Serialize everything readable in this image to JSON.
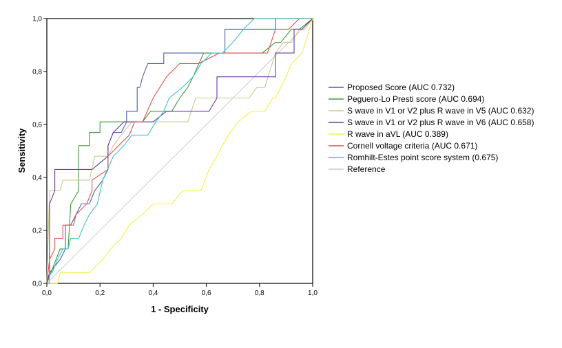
{
  "chart_data": {
    "type": "line",
    "xlabel": "1 - Specificity",
    "ylabel": "Sensitivity",
    "xlim": [
      0,
      1
    ],
    "ylim": [
      0,
      1
    ],
    "xticks": [
      "0,0",
      "0,2",
      "0,4",
      "0,6",
      "0,8",
      "1,0"
    ],
    "yticks": [
      "0,0",
      "0,2",
      "0,4",
      "0,6",
      "0,8",
      "1,0"
    ],
    "grid": false,
    "legend_position": "right",
    "series": [
      {
        "name": "Proposed Score (AUC 0.732)",
        "color": "#4a5fa8",
        "x": [
          0,
          0.01,
          0.05,
          0.07,
          0.07,
          0.09,
          0.11,
          0.11,
          0.13,
          0.16,
          0.16,
          0.18,
          0.18,
          0.21,
          0.23,
          0.23,
          0.25,
          0.28,
          0.3,
          0.3,
          0.34,
          0.34,
          0.35,
          0.36,
          0.36,
          0.38,
          0.44,
          0.44,
          0.59,
          0.67,
          0.67,
          0.86,
          0.86,
          0.9,
          0.93,
          1.0
        ],
        "y": [
          0,
          0.04,
          0.09,
          0.13,
          0.22,
          0.22,
          0.26,
          0.26,
          0.3,
          0.3,
          0.3,
          0.35,
          0.35,
          0.39,
          0.43,
          0.52,
          0.57,
          0.57,
          0.61,
          0.65,
          0.65,
          0.74,
          0.74,
          0.78,
          0.78,
          0.83,
          0.83,
          0.87,
          0.87,
          0.87,
          0.96,
          0.96,
          1.0,
          1.0,
          1.0,
          1.0
        ]
      },
      {
        "name": "Peguero-Lo Presti score (AUC 0.694)",
        "color": "#3a9a3a",
        "x": [
          0,
          0.05,
          0.08,
          0.09,
          0.09,
          0.12,
          0.12,
          0.14,
          0.16,
          0.16,
          0.2,
          0.2,
          0.33,
          0.36,
          0.39,
          0.41,
          0.44,
          0.47,
          0.5,
          0.53,
          0.55,
          0.59,
          0.62,
          0.74,
          0.81,
          0.86,
          0.88,
          0.92,
          0.95,
          1.0
        ],
        "y": [
          0,
          0.13,
          0.13,
          0.3,
          0.3,
          0.35,
          0.52,
          0.52,
          0.52,
          0.57,
          0.57,
          0.61,
          0.61,
          0.61,
          0.65,
          0.65,
          0.65,
          0.65,
          0.7,
          0.74,
          0.78,
          0.87,
          0.87,
          0.87,
          0.87,
          0.91,
          0.91,
          0.96,
          0.96,
          1.0
        ]
      },
      {
        "name": "S wave in V1 or V2 plus R wave in V5 (AUC 0.632)",
        "color": "#c8c890",
        "x": [
          0,
          0.01,
          0.05,
          0.05,
          0.06,
          0.08,
          0.12,
          0.16,
          0.18,
          0.2,
          0.23,
          0.25,
          0.28,
          0.32,
          0.36,
          0.41,
          0.45,
          0.53,
          0.56,
          0.65,
          0.7,
          0.76,
          0.79,
          0.82,
          0.86,
          0.89,
          0.92,
          0.95,
          0.97,
          1.0
        ],
        "y": [
          0,
          0.35,
          0.35,
          0.35,
          0.39,
          0.39,
          0.39,
          0.39,
          0.48,
          0.48,
          0.48,
          0.52,
          0.56,
          0.61,
          0.61,
          0.61,
          0.61,
          0.61,
          0.7,
          0.7,
          0.7,
          0.7,
          0.74,
          0.74,
          0.87,
          0.91,
          0.91,
          0.96,
          0.96,
          1.0
        ]
      },
      {
        "name": "S wave in V1 or V2 plus R wave in V6 (AUC 0.658)",
        "color": "#6a3a9a",
        "x": [
          0,
          0.01,
          0.01,
          0.03,
          0.03,
          0.15,
          0.17,
          0.23,
          0.23,
          0.25,
          0.29,
          0.31,
          0.33,
          0.35,
          0.36,
          0.4,
          0.45,
          0.57,
          0.61,
          0.64,
          0.64,
          0.77,
          0.79,
          0.83,
          0.86,
          0.86,
          0.87,
          0.91,
          0.93,
          0.93,
          0.96,
          1.0
        ],
        "y": [
          0,
          0.04,
          0.3,
          0.35,
          0.43,
          0.43,
          0.43,
          0.48,
          0.52,
          0.57,
          0.61,
          0.61,
          0.61,
          0.61,
          0.61,
          0.61,
          0.65,
          0.65,
          0.65,
          0.7,
          0.78,
          0.78,
          0.78,
          0.78,
          0.78,
          0.87,
          0.87,
          0.87,
          0.87,
          0.96,
          0.96,
          1.0
        ]
      },
      {
        "name": "R wave in aVL (AUC 0.389)",
        "color": "#f0f050",
        "x": [
          0,
          0.04,
          0.05,
          0.09,
          0.16,
          0.21,
          0.24,
          0.28,
          0.31,
          0.36,
          0.4,
          0.42,
          0.47,
          0.51,
          0.56,
          0.58,
          0.61,
          0.64,
          0.66,
          0.69,
          0.72,
          0.77,
          0.82,
          0.85,
          0.86,
          0.88,
          0.9,
          0.92,
          0.96,
          1.0
        ],
        "y": [
          0,
          0.0,
          0.04,
          0.04,
          0.04,
          0.09,
          0.13,
          0.17,
          0.22,
          0.26,
          0.3,
          0.3,
          0.3,
          0.35,
          0.35,
          0.35,
          0.43,
          0.48,
          0.52,
          0.57,
          0.61,
          0.65,
          0.65,
          0.7,
          0.7,
          0.74,
          0.78,
          0.83,
          0.87,
          1.0
        ]
      },
      {
        "name": "Cornell voltage criteria (AUC 0.671)",
        "color": "#e05050",
        "x": [
          0,
          0.01,
          0.03,
          0.03,
          0.06,
          0.06,
          0.07,
          0.1,
          0.11,
          0.15,
          0.17,
          0.17,
          0.23,
          0.23,
          0.27,
          0.27,
          0.31,
          0.33,
          0.36,
          0.4,
          0.45,
          0.5,
          0.52,
          0.57,
          0.65,
          0.68,
          0.74,
          0.83,
          0.86,
          0.89,
          0.91,
          0.95,
          1.0
        ],
        "y": [
          0,
          0.09,
          0.13,
          0.17,
          0.17,
          0.22,
          0.22,
          0.22,
          0.26,
          0.3,
          0.35,
          0.39,
          0.43,
          0.48,
          0.52,
          0.52,
          0.56,
          0.61,
          0.61,
          0.7,
          0.78,
          0.83,
          0.83,
          0.83,
          0.87,
          0.87,
          0.87,
          0.87,
          0.96,
          0.96,
          0.96,
          1.0,
          1.0
        ]
      },
      {
        "name": "Romhilt-Estes point score system (0.675)",
        "color": "#40c0c8",
        "x": [
          0,
          0.01,
          0.01,
          0.02,
          0.04,
          0.06,
          0.08,
          0.09,
          0.12,
          0.14,
          0.16,
          0.19,
          0.21,
          0.25,
          0.29,
          0.32,
          0.35,
          0.38,
          0.41,
          0.44,
          0.46,
          0.51,
          0.55,
          0.58,
          0.62,
          0.66,
          0.7,
          0.74,
          0.78,
          0.82,
          0.86,
          0.89,
          0.93,
          0.95,
          1.0
        ],
        "y": [
          0,
          0.0,
          0.04,
          0.04,
          0.09,
          0.13,
          0.13,
          0.17,
          0.17,
          0.22,
          0.26,
          0.3,
          0.39,
          0.48,
          0.52,
          0.56,
          0.56,
          0.56,
          0.61,
          0.65,
          0.7,
          0.74,
          0.78,
          0.83,
          0.87,
          0.87,
          0.91,
          0.96,
          1.0,
          1.0,
          1.0,
          1.0,
          1.0,
          1.0,
          1.0
        ]
      },
      {
        "name": "Reference",
        "color": "#c8c8c8",
        "x": [
          0,
          1
        ],
        "y": [
          0,
          1
        ]
      }
    ]
  }
}
